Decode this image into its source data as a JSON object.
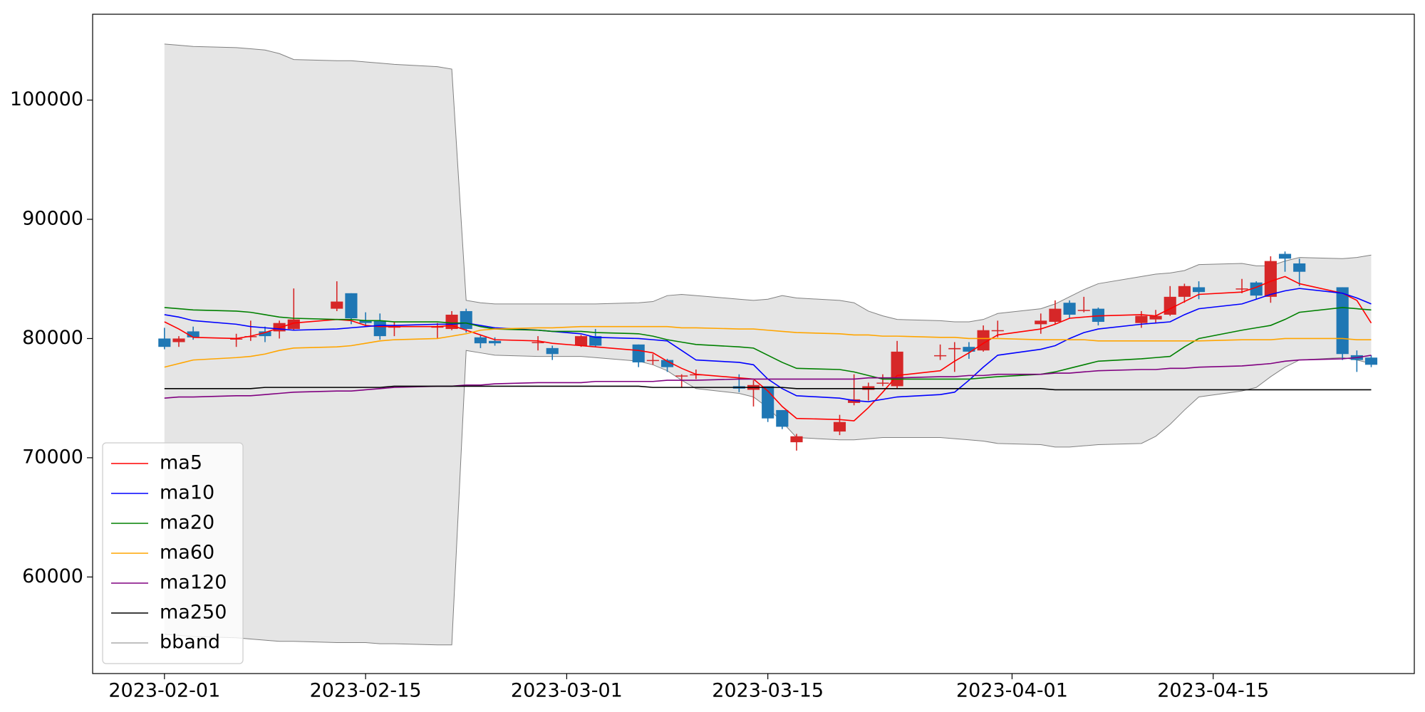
{
  "chart_data": {
    "type": "candlestick",
    "x": [
      "2023-02-01",
      "2023-02-02",
      "2023-02-03",
      "2023-02-06",
      "2023-02-07",
      "2023-02-08",
      "2023-02-09",
      "2023-02-10",
      "2023-02-13",
      "2023-02-14",
      "2023-02-15",
      "2023-02-16",
      "2023-02-17",
      "2023-02-20",
      "2023-02-21",
      "2023-02-22",
      "2023-02-23",
      "2023-02-24",
      "2023-02-27",
      "2023-02-28",
      "2023-03-02",
      "2023-03-03",
      "2023-03-06",
      "2023-03-07",
      "2023-03-08",
      "2023-03-09",
      "2023-03-10",
      "2023-03-13",
      "2023-03-14",
      "2023-03-15",
      "2023-03-16",
      "2023-03-17",
      "2023-03-20",
      "2023-03-21",
      "2023-03-22",
      "2023-03-23",
      "2023-03-24",
      "2023-03-27",
      "2023-03-28",
      "2023-03-29",
      "2023-03-30",
      "2023-03-31",
      "2023-04-03",
      "2023-04-04",
      "2023-04-05",
      "2023-04-06",
      "2023-04-07",
      "2023-04-10",
      "2023-04-11",
      "2023-04-12",
      "2023-04-13",
      "2023-04-14",
      "2023-04-17",
      "2023-04-18",
      "2023-04-19",
      "2023-04-20",
      "2023-04-21",
      "2023-04-24",
      "2023-04-25",
      "2023-04-26"
    ],
    "open": [
      80000,
      79700,
      80600,
      80000,
      80200,
      80600,
      80600,
      80800,
      82500,
      83800,
      81500,
      81500,
      81000,
      81000,
      80800,
      82300,
      80100,
      79800,
      79700,
      79200,
      79400,
      80200,
      79500,
      78200,
      78200,
      76900,
      77000,
      76000,
      75700,
      76000,
      74000,
      71300,
      72200,
      74600,
      75700,
      76300,
      76000,
      78600,
      79100,
      79300,
      79000,
      80700,
      81200,
      81400,
      83000,
      82400,
      82500,
      81300,
      81600,
      82000,
      83500,
      84300,
      84200,
      84700,
      83500,
      87100,
      86300,
      84300,
      78600,
      78400
    ],
    "high": [
      80900,
      80200,
      81000,
      80400,
      81500,
      81000,
      81500,
      84200,
      84800,
      83800,
      82200,
      82100,
      81400,
      81300,
      82300,
      82500,
      80300,
      80100,
      80200,
      79400,
      80300,
      80800,
      79500,
      78700,
      78300,
      77000,
      77400,
      77000,
      76500,
      76000,
      74000,
      72000,
      73600,
      77000,
      76300,
      77000,
      79800,
      79500,
      79700,
      79700,
      81100,
      81500,
      82100,
      83200,
      83200,
      83500,
      82600,
      82300,
      82400,
      84400,
      84600,
      84800,
      85000,
      84800,
      86900,
      87300,
      86700,
      84300,
      79000,
      78600
    ],
    "low": [
      79100,
      79300,
      79900,
      79300,
      79800,
      79700,
      80000,
      80700,
      82300,
      81200,
      81000,
      79900,
      80200,
      80000,
      80700,
      80500,
      79200,
      79400,
      79000,
      78200,
      79300,
      79300,
      77600,
      77800,
      77200,
      75900,
      76600,
      75500,
      74300,
      73000,
      72400,
      70600,
      71900,
      74400,
      74800,
      76000,
      75800,
      78200,
      77200,
      78300,
      78900,
      80100,
      80400,
      81200,
      81700,
      82200,
      81100,
      80900,
      81300,
      81900,
      83000,
      83300,
      83800,
      83300,
      83000,
      85600,
      84400,
      78200,
      77200,
      77600
    ],
    "close": [
      79300,
      80000,
      80100,
      80000,
      80200,
      80200,
      81300,
      81600,
      83100,
      81700,
      81300,
      80200,
      81000,
      81000,
      82000,
      80800,
      79600,
      79600,
      79700,
      78700,
      80200,
      79400,
      78000,
      78200,
      77600,
      76900,
      77000,
      75800,
      76100,
      73300,
      72600,
      71800,
      73000,
      74900,
      76000,
      76300,
      78900,
      78600,
      79200,
      78900,
      80700,
      80700,
      81500,
      82500,
      82000,
      82400,
      81400,
      81900,
      81900,
      83500,
      84400,
      83900,
      84200,
      83600,
      86500,
      86700,
      85600,
      78700,
      78200,
      77800
    ],
    "up_color": "#d62728",
    "down_color": "#1f77b4",
    "series": [
      {
        "name": "ma5",
        "color": "#ff0000",
        "values": [
          81400,
          80800,
          80100,
          80000,
          80200,
          80500,
          80900,
          81300,
          81600,
          81500,
          81100,
          81000,
          81000,
          81000,
          81100,
          80700,
          80300,
          79900,
          79800,
          79600,
          79400,
          79300,
          79000,
          78800,
          78100,
          77500,
          77000,
          76700,
          76600,
          75600,
          74300,
          73300,
          73200,
          73100,
          74200,
          75500,
          76900,
          77300,
          78100,
          78800,
          79600,
          80300,
          80800,
          81200,
          81700,
          81800,
          81900,
          82000,
          81900,
          82500,
          83100,
          83700,
          83900,
          84300,
          84800,
          85200,
          84600,
          83800,
          83200,
          81300
        ]
      },
      {
        "name": "ma10",
        "color": "#0000ff",
        "values": [
          82000,
          81800,
          81500,
          81200,
          81000,
          80900,
          80800,
          80700,
          80800,
          80900,
          81000,
          81100,
          81100,
          81200,
          81200,
          81300,
          81100,
          80900,
          80700,
          80600,
          80400,
          80100,
          80000,
          79900,
          79800,
          79000,
          78200,
          78000,
          77800,
          76600,
          75800,
          75200,
          75000,
          74800,
          74700,
          74900,
          75100,
          75300,
          75500,
          76500,
          77600,
          78600,
          79100,
          79400,
          80000,
          80500,
          80800,
          81200,
          81300,
          81400,
          82000,
          82500,
          82900,
          83300,
          83700,
          84000,
          84200,
          83800,
          83400,
          82900
        ]
      },
      {
        "name": "ma20",
        "color": "#008000",
        "values": [
          82600,
          82500,
          82400,
          82300,
          82200,
          82000,
          81800,
          81700,
          81600,
          81600,
          81500,
          81500,
          81400,
          81400,
          81300,
          81300,
          81000,
          80800,
          80700,
          80600,
          80600,
          80500,
          80400,
          80200,
          79900,
          79700,
          79500,
          79300,
          79200,
          78600,
          78000,
          77500,
          77400,
          77200,
          76900,
          76600,
          76600,
          76600,
          76600,
          76600,
          76700,
          76800,
          77000,
          77200,
          77500,
          77800,
          78100,
          78300,
          78400,
          78500,
          79300,
          80000,
          80700,
          80900,
          81100,
          81600,
          82200,
          82600,
          82500,
          82400
        ]
      },
      {
        "name": "ma60",
        "color": "#ffa500",
        "values": [
          77600,
          77900,
          78200,
          78400,
          78500,
          78700,
          79000,
          79200,
          79300,
          79400,
          79600,
          79800,
          79900,
          80000,
          80200,
          80400,
          80700,
          80800,
          80900,
          80900,
          81000,
          81000,
          81000,
          81000,
          81000,
          80900,
          80900,
          80800,
          80800,
          80700,
          80600,
          80500,
          80400,
          80300,
          80300,
          80200,
          80200,
          80100,
          80100,
          80000,
          80000,
          80000,
          79900,
          79900,
          79900,
          79900,
          79800,
          79800,
          79800,
          79800,
          79800,
          79800,
          79900,
          79900,
          79900,
          80000,
          80000,
          80000,
          79900,
          79900
        ]
      },
      {
        "name": "ma120",
        "color": "#800080",
        "values": [
          75000,
          75100,
          75100,
          75200,
          75200,
          75300,
          75400,
          75500,
          75600,
          75600,
          75700,
          75800,
          75900,
          76000,
          76000,
          76100,
          76100,
          76200,
          76300,
          76300,
          76300,
          76400,
          76400,
          76400,
          76500,
          76500,
          76500,
          76600,
          76600,
          76600,
          76600,
          76600,
          76600,
          76600,
          76700,
          76700,
          76700,
          76800,
          76800,
          76900,
          76900,
          77000,
          77000,
          77100,
          77100,
          77200,
          77300,
          77400,
          77400,
          77500,
          77500,
          77600,
          77700,
          77800,
          77900,
          78100,
          78200,
          78300,
          78400,
          78600
        ]
      },
      {
        "name": "ma250",
        "color": "#000000",
        "values": [
          75800,
          75800,
          75800,
          75800,
          75800,
          75900,
          75900,
          75900,
          75900,
          75900,
          75900,
          75900,
          76000,
          76000,
          76000,
          76000,
          76000,
          76000,
          76000,
          76000,
          76000,
          76000,
          76000,
          75900,
          75900,
          75900,
          75900,
          75900,
          75900,
          75900,
          75900,
          75800,
          75800,
          75800,
          75800,
          75800,
          75800,
          75800,
          75800,
          75800,
          75800,
          75800,
          75800,
          75700,
          75700,
          75700,
          75700,
          75700,
          75700,
          75700,
          75700,
          75700,
          75700,
          75700,
          75700,
          75700,
          75700,
          75700,
          75700,
          75700
        ]
      }
    ],
    "band": {
      "name": "bband",
      "color": "#808080",
      "fill": "#e5e5e5",
      "upper": [
        104700,
        104600,
        104500,
        104400,
        104300,
        104200,
        103900,
        103400,
        103300,
        103300,
        103200,
        103100,
        103000,
        102800,
        102600,
        83200,
        83000,
        82900,
        82900,
        82900,
        82900,
        82900,
        83000,
        83100,
        83600,
        83700,
        83600,
        83300,
        83200,
        83300,
        83600,
        83400,
        83200,
        83000,
        82300,
        81900,
        81600,
        81500,
        81400,
        81400,
        81600,
        82100,
        82500,
        82900,
        83500,
        84100,
        84600,
        85200,
        85400,
        85500,
        85700,
        86200,
        86300,
        86100,
        86100,
        86500,
        86800,
        86700,
        86800,
        87000
      ],
      "lower": [
        55200,
        55100,
        55000,
        54900,
        54800,
        54700,
        54600,
        54600,
        54500,
        54500,
        54500,
        54400,
        54400,
        54300,
        54300,
        79000,
        78800,
        78600,
        78500,
        78500,
        78500,
        78400,
        78100,
        77800,
        77300,
        76500,
        75800,
        75400,
        75100,
        74200,
        73000,
        71700,
        71500,
        71500,
        71600,
        71700,
        71700,
        71700,
        71600,
        71500,
        71400,
        71200,
        71100,
        70900,
        70900,
        71000,
        71100,
        71200,
        71800,
        72800,
        74000,
        75100,
        75600,
        75900,
        76800,
        77600,
        78200,
        78400,
        78200,
        77900
      ]
    },
    "xlim": [
      "2023-01-27",
      "2023-04-29"
    ],
    "xticks": [
      "2023-02-01",
      "2023-02-15",
      "2023-03-01",
      "2023-03-15",
      "2023-04-01",
      "2023-04-15"
    ],
    "ylim": [
      51900,
      107200
    ],
    "yticks": [
      60000,
      70000,
      80000,
      90000,
      100000
    ],
    "legend": "lower left"
  }
}
